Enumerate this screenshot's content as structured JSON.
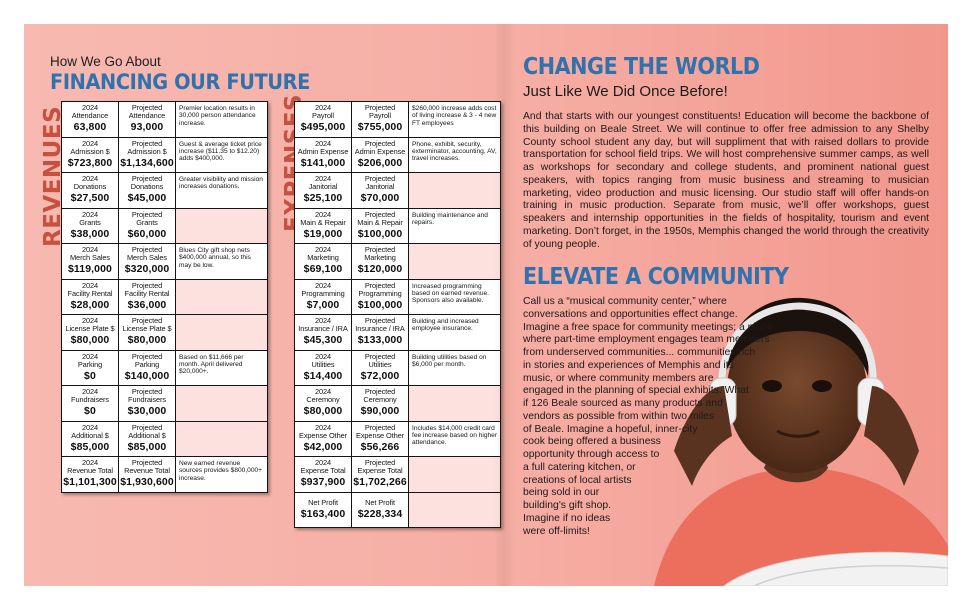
{
  "left": {
    "kicker": "How We Go About",
    "headline": "FINANCING OUR FUTURE",
    "revenues_label": "REVENUES",
    "expenses_label": "EXPENSES",
    "revenues": [
      {
        "l1": "2024",
        "l2": "Attendance",
        "v1": "63,800",
        "p1": "Projected",
        "p2": "Attendance",
        "v2": "93,000",
        "note": "Premier location results in 30,000 person attendance increase."
      },
      {
        "l1": "2024",
        "l2": "Admission $",
        "v1": "$723,800",
        "p1": "Projected",
        "p2": "Admission $",
        "v2": "$1,134,600",
        "note": "Guest & average ticket price increase ($11.35 to $12.20) adds $400,000."
      },
      {
        "l1": "2024",
        "l2": "Donations",
        "v1": "$27,500",
        "p1": "Projected",
        "p2": "Donations",
        "v2": "$45,000",
        "note": "Greater visibility and mission increases donations."
      },
      {
        "l1": "2024",
        "l2": "Grants",
        "v1": "$38,000",
        "p1": "Projected",
        "p2": "Grants",
        "v2": "$60,000",
        "note": ""
      },
      {
        "l1": "2024",
        "l2": "Merch Sales",
        "v1": "$119,000",
        "p1": "Projected",
        "p2": "Merch Sales",
        "v2": "$320,000",
        "note": "Blues City gift shop nets $400,000 annual, so this may be low."
      },
      {
        "l1": "2024",
        "l2": "Facility Rental",
        "v1": "$28,000",
        "p1": "Projected",
        "p2": "Facility Rental",
        "v2": "$36,000",
        "note": ""
      },
      {
        "l1": "2024",
        "l2": "License Plate $",
        "v1": "$80,000",
        "p1": "Projected",
        "p2": "License Plate $",
        "v2": "$80,000",
        "note": ""
      },
      {
        "l1": "2024",
        "l2": "Parking",
        "v1": "$0",
        "p1": "Projected",
        "p2": "Parking",
        "v2": "$140,000",
        "note": "Based on $11,666 per month. April delivered $20,000+."
      },
      {
        "l1": "2024",
        "l2": "Fundraisers",
        "v1": "$0",
        "p1": "Projected",
        "p2": "Fundraisers",
        "v2": "$30,000",
        "note": ""
      },
      {
        "l1": "2024",
        "l2": "Additional $",
        "v1": "$85,000",
        "p1": "Projected",
        "p2": "Additional $",
        "v2": "$85,000",
        "note": ""
      },
      {
        "l1": "2024",
        "l2": "Revenue Total",
        "v1": "$1,101,300",
        "p1": "Projected",
        "p2": "Revenue Total",
        "v2": "$1,930,600",
        "note": "New earned revenue sources provides $800,000+ increase."
      }
    ],
    "expenses": [
      {
        "l1": "2024",
        "l2": "Payroll",
        "v1": "$495,000",
        "p1": "Projected",
        "p2": "Payroll",
        "v2": "$755,000",
        "note": "$260,000 increase adds cost of living increase & 3 - 4 new FT employees"
      },
      {
        "l1": "2024",
        "l2": "Admin Expense",
        "v1": "$141,000",
        "p1": "Projected",
        "p2": "Admin Expense",
        "v2": "$206,000",
        "note": "Phone, exhibit, security, exterminator, accounting, AV, travel increases."
      },
      {
        "l1": "2024",
        "l2": "Janitorial",
        "v1": "$25,100",
        "p1": "Projected",
        "p2": "Janitorial",
        "v2": "$70,000",
        "note": ""
      },
      {
        "l1": "2024",
        "l2": "Main & Repair",
        "v1": "$19,000",
        "p1": "Projected",
        "p2": "Main & Repair",
        "v2": "$100,000",
        "note": "Building maintenance and repairs."
      },
      {
        "l1": "2024",
        "l2": "Marketing",
        "v1": "$69,100",
        "p1": "Projected",
        "p2": "Marketing",
        "v2": "$120,000",
        "note": ""
      },
      {
        "l1": "2024",
        "l2": "Programming",
        "v1": "$7,000",
        "p1": "Projected",
        "p2": "Programming",
        "v2": "$100,000",
        "note": "Increased programming based on earned revenue. Sponsors also available."
      },
      {
        "l1": "2024",
        "l2": "Insurance / IRA",
        "v1": "$45,300",
        "p1": "Projected",
        "p2": "Insurance / IRA",
        "v2": "$133,000",
        "note": "Building and increased employee insurance."
      },
      {
        "l1": "2024",
        "l2": "Utilities",
        "v1": "$14,400",
        "p1": "Projected",
        "p2": "Utilities",
        "v2": "$72,000",
        "note": "Building utilities based on $6,000 per month."
      },
      {
        "l1": "2024",
        "l2": "Ceremony",
        "v1": "$80,000",
        "p1": "Projected",
        "p2": "Ceremony",
        "v2": "$90,000",
        "note": ""
      },
      {
        "l1": "2024",
        "l2": "Expense Other",
        "v1": "$42,000",
        "p1": "Projected",
        "p2": "Expense Other",
        "v2": "$56,266",
        "note": "Includes $14,000 credit card fee increase based on higher attendance."
      },
      {
        "l1": "2024",
        "l2": "Expense Total",
        "v1": "$937,900",
        "p1": "Projected",
        "p2": "Expense Total",
        "v2": "$1,702,266",
        "note": ""
      },
      {
        "l1": "",
        "l2": "Net Profit",
        "v1": "$163,400",
        "p1": "",
        "p2": "Net Profit",
        "v2": "$228,334",
        "note": ""
      }
    ]
  },
  "right": {
    "change_heading": "CHANGE THE WORLD",
    "change_subheading": "Just Like We Did Once Before!",
    "change_body": "And that starts with our youngest constituents! Education will become the backbone of this building on Beale Street. We will continue to offer free admission to any Shelby County school student any day, but will suppliment that with raised dollars to provide transportation for school field trips. We will host comprehensive summer camps, as well as workshops for secondary and college students, and prominent national guest speakers, with topics ranging from music business and streaming to musician marketing, video production and music licensing. Our studio staff will offer hands-on training in music production. Separate from music, we’ll offer workshops, guest speakers and internship opportunities in the fields of hospitality, tourism and event marketing. Don’t forget, in the 1950s, Memphis changed the world through the creativity of young people.",
    "elevate_heading": "ELEVATE A COMMUNITY",
    "elevate_lines": [
      "Call us a “musical community center,” where",
      "conversations and opportunities effect change.",
      "Imagine a free space for community meetings; a place",
      "where part-time employment engages team members",
      "from underserved communities... communities rich",
      "in stories and experiences of Memphis and its",
      "music, or where community members are",
      "engaged in the planning of special exhibits. What",
      "if 126 Beale sourced as many products and",
      "vendors as possible from within two miles",
      "of Beale. Imagine a hopeful, inner-city",
      "cook being offered a business",
      "opportunity through access to",
      "a full catering kitchen, or",
      "creations of local artists",
      "being sold in our",
      "building's gift shop.",
      "Imagine if no ideas",
      "were off-limits!"
    ],
    "photo_icon": "child-with-headphones-photo"
  },
  "colors": {
    "background_pink": "#f6ada3",
    "heading_blue": "#2f72ad",
    "vertical_label_red": "#c6513f",
    "blank_note_pink": "#fde1df"
  }
}
